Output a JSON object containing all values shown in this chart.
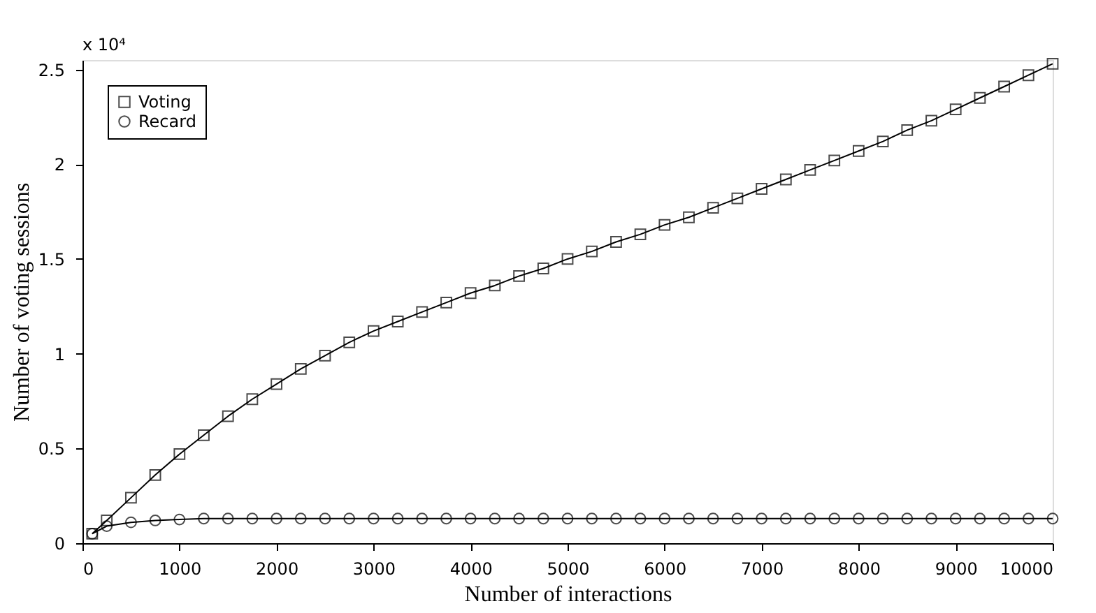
{
  "chart_data": {
    "type": "line",
    "xlabel": "Number of interactions",
    "ylabel": "Number of voting sessions",
    "annotations": [
      "x 10⁴"
    ],
    "x": [
      100,
      250,
      500,
      750,
      1000,
      1250,
      1500,
      1750,
      2000,
      2250,
      2500,
      2750,
      3000,
      3250,
      3500,
      3750,
      4000,
      4250,
      4500,
      4750,
      5000,
      5250,
      5500,
      5750,
      6000,
      6250,
      6500,
      6750,
      7000,
      7250,
      7500,
      7750,
      8000,
      8250,
      8500,
      8750,
      9000,
      9250,
      9500,
      9750,
      10000
    ],
    "series": [
      {
        "name": "Voting",
        "color": "#000000",
        "marker": "square",
        "values": [
          0.05,
          0.12,
          0.24,
          0.36,
          0.47,
          0.57,
          0.67,
          0.76,
          0.84,
          0.92,
          0.99,
          1.06,
          1.12,
          1.17,
          1.22,
          1.27,
          1.32,
          1.36,
          1.41,
          1.45,
          1.5,
          1.54,
          1.59,
          1.63,
          1.68,
          1.72,
          1.77,
          1.82,
          1.87,
          1.92,
          1.97,
          2.02,
          2.07,
          2.12,
          2.18,
          2.23,
          2.29,
          2.35,
          2.41,
          2.47,
          2.53
        ]
      },
      {
        "name": "Recard",
        "color": "#000000",
        "marker": "circle",
        "values": [
          0.05,
          0.09,
          0.11,
          0.12,
          0.125,
          0.13,
          0.13,
          0.13,
          0.13,
          0.13,
          0.13,
          0.13,
          0.13,
          0.13,
          0.13,
          0.13,
          0.13,
          0.13,
          0.13,
          0.13,
          0.13,
          0.13,
          0.13,
          0.13,
          0.13,
          0.13,
          0.13,
          0.13,
          0.13,
          0.13,
          0.13,
          0.13,
          0.13,
          0.13,
          0.13,
          0.13,
          0.13,
          0.13,
          0.13,
          0.13,
          0.13
        ]
      }
    ],
    "xlim": [
      0,
      10000
    ],
    "xticks": [
      0,
      1000,
      2000,
      3000,
      4000,
      5000,
      6000,
      7000,
      8000,
      9000,
      10000
    ],
    "ylim": [
      0,
      2.55
    ],
    "yticks": [
      0,
      0.5,
      1,
      1.5,
      2,
      2.5
    ],
    "grid": false,
    "legend": "top left",
    "line_style": "solid"
  }
}
